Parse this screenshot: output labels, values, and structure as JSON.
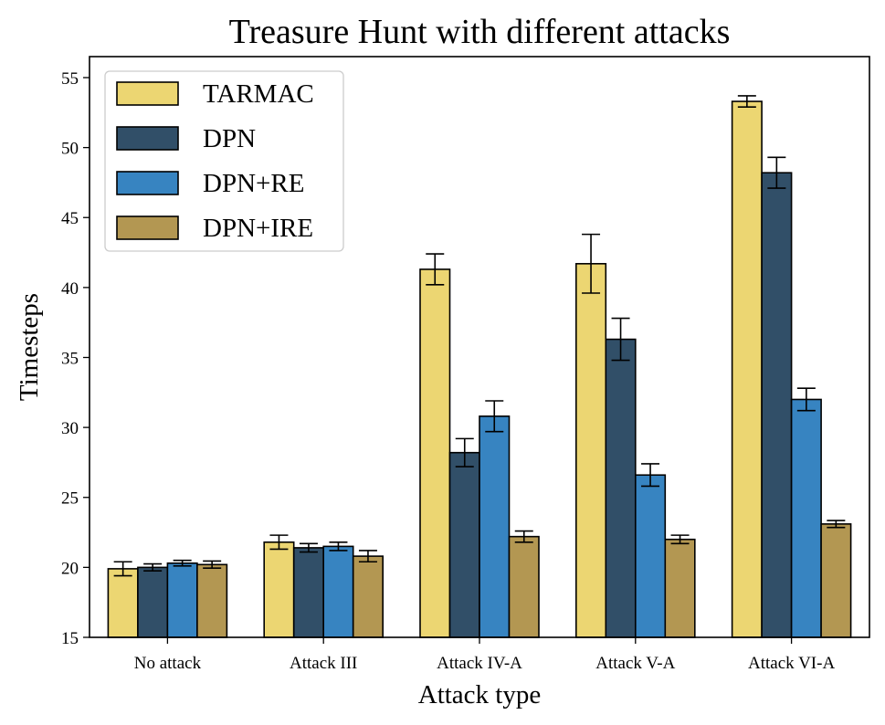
{
  "chart_data": {
    "type": "bar",
    "title": "Treasure Hunt with different attacks",
    "xlabel": "Attack type",
    "ylabel": "Timesteps",
    "ylim": [
      15,
      56.5
    ],
    "yticks": [
      15,
      20,
      25,
      30,
      35,
      40,
      45,
      50,
      55
    ],
    "categories": [
      "No attack",
      "Attack III",
      "Attack IV-A",
      "Attack V-A",
      "Attack VI-A"
    ],
    "grid": false,
    "legend_position": "top-left",
    "series": [
      {
        "name": "TARMAC",
        "color": "#ecd672",
        "values": [
          19.9,
          21.8,
          41.3,
          41.7,
          53.3
        ],
        "errors": [
          0.5,
          0.5,
          1.1,
          2.1,
          0.4
        ]
      },
      {
        "name": "DPN",
        "color": "#314f68",
        "values": [
          20.0,
          21.4,
          28.2,
          36.3,
          48.2
        ],
        "errors": [
          0.25,
          0.3,
          1.0,
          1.5,
          1.1
        ]
      },
      {
        "name": "DPN+RE",
        "color": "#3784c1",
        "values": [
          20.3,
          21.5,
          30.8,
          26.6,
          32.0
        ],
        "errors": [
          0.2,
          0.3,
          1.1,
          0.8,
          0.8
        ]
      },
      {
        "name": "DPN+IRE",
        "color": "#b39752",
        "values": [
          20.2,
          20.8,
          22.2,
          22.0,
          23.1
        ],
        "errors": [
          0.25,
          0.4,
          0.4,
          0.3,
          0.25
        ]
      }
    ]
  }
}
